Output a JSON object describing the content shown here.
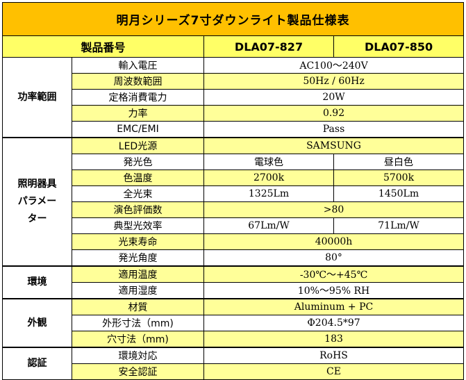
{
  "title": "明月シリーズ7寸ダウンライト製品仕様表",
  "header": {
    "label": "製品番号",
    "model_a": "DLA07-827",
    "model_b": "DLA07-850"
  },
  "groups": {
    "power": "功率範囲",
    "lighting": [
      "照明器具",
      "パラメー",
      "ター"
    ],
    "environment": "環境",
    "appearance": "外観",
    "certification": "認証"
  },
  "rows": {
    "input_voltage": {
      "label": "輸入電圧",
      "value": "AC100～240V"
    },
    "frequency": {
      "label": "周波数範囲",
      "value": "50Hz / 60Hz"
    },
    "rated_power": {
      "label": "定格消費電力",
      "value": "20W"
    },
    "power_factor": {
      "label": "力率",
      "value": "0.92"
    },
    "emc": {
      "label": "EMC/EMI",
      "value": "Pass"
    },
    "led_source": {
      "label": "LED光源",
      "value": "SAMSUNG"
    },
    "light_color": {
      "label": "発光色",
      "a": "電球色",
      "b": "昼白色"
    },
    "color_temp": {
      "label": "色温度",
      "a": "2700k",
      "b": "5700k"
    },
    "luminous_flux": {
      "label": "全光束",
      "a": "1325Lm",
      "b": "1450Lm"
    },
    "cri": {
      "label": "演色評価数",
      "value": ">80"
    },
    "efficacy": {
      "label": "典型光效率",
      "a": "67Lm/W",
      "b": "71Lm/W"
    },
    "lifetime": {
      "label": "光束寿命",
      "value": "40000h"
    },
    "beam_angle": {
      "label": "発光角度",
      "value": "80°"
    },
    "temp_range": {
      "label": "適用温度",
      "value": "-30℃～+45℃"
    },
    "humidity": {
      "label": "適用湿度",
      "value": "10%～95% RH"
    },
    "material": {
      "label": "材質",
      "value": "Aluminum + PC"
    },
    "dimensions": {
      "label": "外形寸法（mm)",
      "value": "Φ204.5*97"
    },
    "cutout": {
      "label": "穴寸法（mm)",
      "value": "183"
    },
    "env_compliance": {
      "label": "環境対応",
      "value": "RoHS"
    },
    "safety_cert": {
      "label": "安全認証",
      "value": "CE"
    }
  },
  "colors": {
    "title_bg": "#FFC000",
    "header_bg": "#FFFF66",
    "highlight_bg": "#FFFF99",
    "border": "#000000"
  }
}
